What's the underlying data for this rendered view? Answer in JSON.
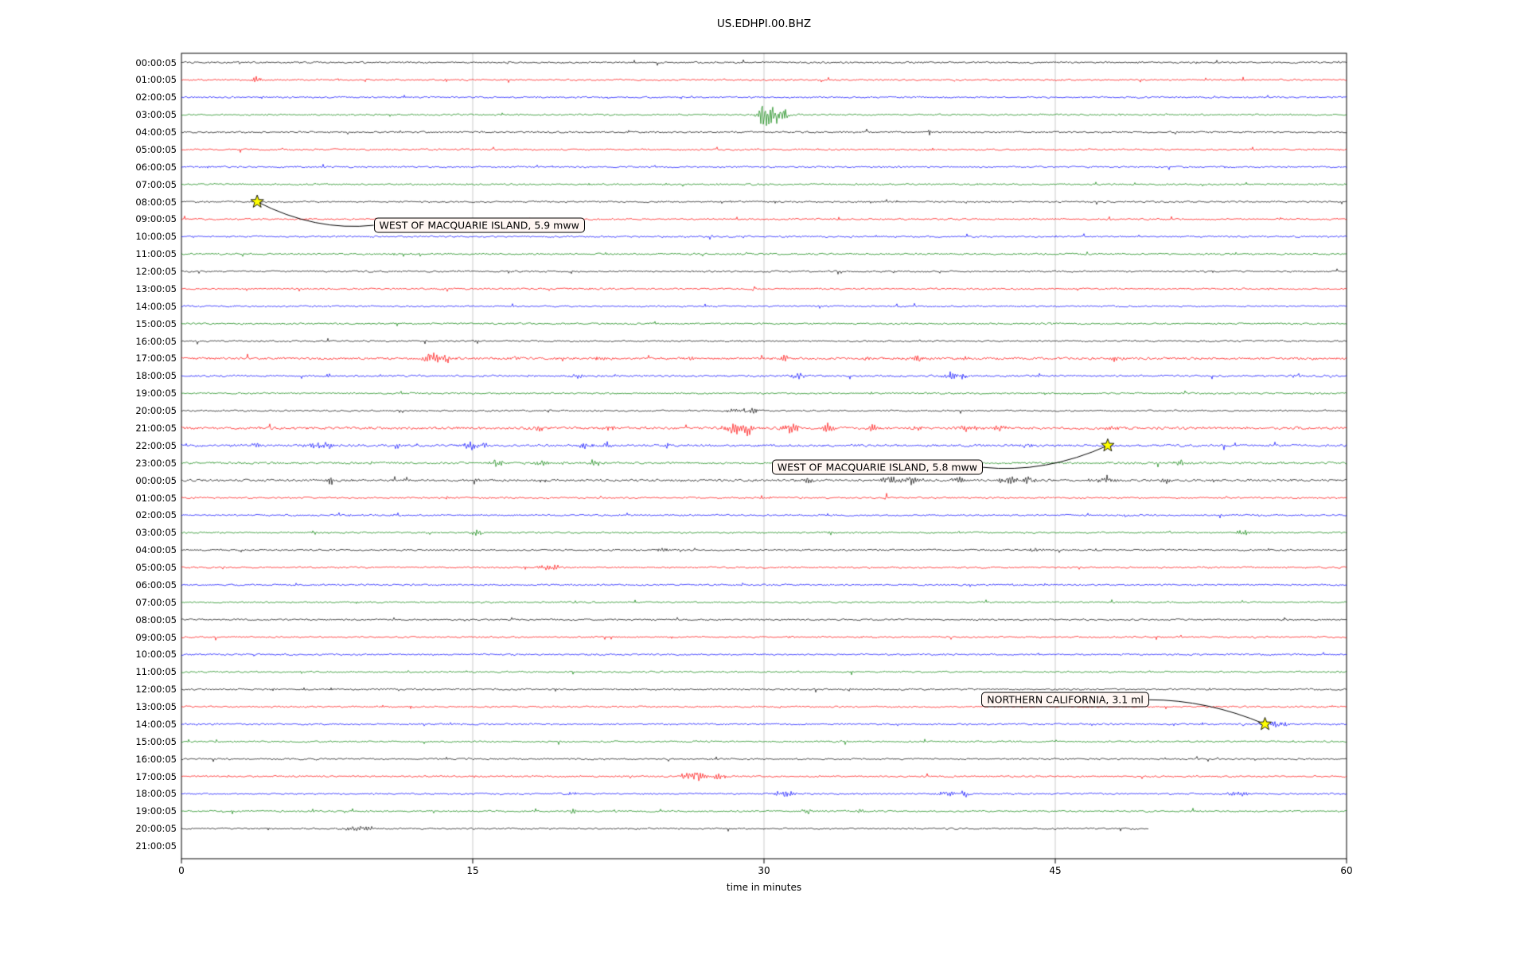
{
  "chart_data": {
    "type": "line",
    "subtype": "helicorder-seismogram",
    "title": "US.EDHPI.00.BHZ",
    "xlabel": "time in minutes",
    "x_ticks": [
      0,
      15,
      30,
      45,
      60
    ],
    "x_range": [
      0,
      60
    ],
    "minutes_per_line": 60,
    "grid": "vertical-only",
    "palette": {
      "k": "#000000",
      "r": "#ff0000",
      "b": "#0000ff",
      "g": "#008000"
    },
    "grid_color": "#bbbbbb",
    "frame_color": "#000000",
    "marker_color": "#ffff00",
    "rows": [
      {
        "t": "00:00:05",
        "c": "k"
      },
      {
        "t": "01:00:05",
        "c": "r",
        "b": [
          [
            3.9,
            0.25,
            6
          ]
        ]
      },
      {
        "t": "02:00:05",
        "c": "b"
      },
      {
        "t": "03:00:05",
        "c": "g",
        "b": [
          [
            29.9,
            0.25,
            10
          ],
          [
            30.4,
            0.5,
            13
          ],
          [
            31.1,
            0.2,
            7
          ]
        ]
      },
      {
        "t": "04:00:05",
        "c": "k",
        "b": [
          [
            38.5,
            0.07,
            6
          ]
        ]
      },
      {
        "t": "05:00:05",
        "c": "r"
      },
      {
        "t": "06:00:05",
        "c": "b"
      },
      {
        "t": "07:00:05",
        "c": "g"
      },
      {
        "t": "08:00:05",
        "c": "k",
        "b": [
          [
            4.0,
            0.15,
            2.5
          ]
        ]
      },
      {
        "t": "09:00:05",
        "c": "r"
      },
      {
        "t": "10:00:05",
        "c": "b",
        "b": [
          [
            27.2,
            0.1,
            3.5
          ]
        ]
      },
      {
        "t": "11:00:05",
        "c": "g"
      },
      {
        "t": "12:00:05",
        "c": "k"
      },
      {
        "t": "13:00:05",
        "c": "r"
      },
      {
        "t": "14:00:05",
        "c": "b"
      },
      {
        "t": "15:00:05",
        "c": "g"
      },
      {
        "t": "16:00:05",
        "c": "k",
        "b": [
          [
            15.2,
            0.08,
            5
          ]
        ]
      },
      {
        "t": "17:00:05",
        "c": "r",
        "n": 1.6,
        "b": [
          [
            12.9,
            0.4,
            8
          ],
          [
            13.6,
            0.25,
            6
          ],
          [
            17.2,
            0.3,
            3
          ],
          [
            21.7,
            0.35,
            3.5
          ],
          [
            26.2,
            0.25,
            2.5
          ],
          [
            31.0,
            0.35,
            4
          ],
          [
            35.3,
            0.25,
            3
          ],
          [
            37.9,
            0.35,
            4.5
          ],
          [
            40.3,
            0.25,
            3
          ],
          [
            48.1,
            0.3,
            3.5
          ]
        ]
      },
      {
        "t": "18:00:05",
        "c": "b",
        "n": 1.3,
        "b": [
          [
            20.4,
            0.3,
            3
          ],
          [
            31.8,
            0.35,
            4
          ],
          [
            39.7,
            0.45,
            5
          ],
          [
            40.3,
            0.2,
            4
          ],
          [
            44.2,
            0.2,
            2.5
          ]
        ]
      },
      {
        "t": "19:00:05",
        "c": "g"
      },
      {
        "t": "20:00:05",
        "c": "k",
        "b": [
          [
            28.7,
            0.5,
            4
          ],
          [
            29.5,
            0.2,
            5
          ]
        ]
      },
      {
        "t": "21:00:05",
        "c": "r",
        "n": 1.7,
        "b": [
          [
            18.3,
            0.3,
            5
          ],
          [
            22.1,
            0.3,
            4
          ],
          [
            28.4,
            0.5,
            8
          ],
          [
            29.2,
            0.25,
            10
          ],
          [
            31.4,
            0.45,
            6
          ],
          [
            33.3,
            0.35,
            7
          ],
          [
            35.6,
            0.3,
            4
          ],
          [
            38.1,
            0.35,
            5
          ],
          [
            40.6,
            0.5,
            5
          ],
          [
            42.1,
            0.35,
            5
          ],
          [
            47.9,
            0.3,
            4
          ]
        ]
      },
      {
        "t": "22:00:05",
        "c": "b",
        "n": 1.5,
        "b": [
          [
            3.9,
            0.3,
            4
          ],
          [
            6.9,
            0.45,
            4
          ],
          [
            7.6,
            0.25,
            5
          ],
          [
            11.1,
            0.2,
            4
          ],
          [
            14.9,
            0.45,
            5
          ],
          [
            15.6,
            0.2,
            4
          ],
          [
            20.9,
            0.4,
            5
          ],
          [
            21.9,
            0.3,
            4
          ],
          [
            25.0,
            0.2,
            3
          ],
          [
            43.6,
            0.3,
            4
          ]
        ]
      },
      {
        "t": "23:00:05",
        "c": "g",
        "n": 1.4,
        "b": [
          [
            16.3,
            0.35,
            6
          ],
          [
            17.6,
            0.2,
            3
          ],
          [
            18.6,
            0.3,
            5
          ],
          [
            21.3,
            0.3,
            4
          ],
          [
            51.4,
            0.35,
            6
          ]
        ]
      },
      {
        "t": "00:00:05",
        "c": "k",
        "n": 1.5,
        "b": [
          [
            7.7,
            0.2,
            5
          ],
          [
            11.6,
            0.15,
            6
          ],
          [
            15.2,
            0.2,
            5
          ],
          [
            32.3,
            0.3,
            5
          ],
          [
            36.6,
            0.45,
            6
          ],
          [
            37.6,
            0.3,
            7
          ],
          [
            40.0,
            0.3,
            4
          ],
          [
            42.6,
            0.45,
            6
          ],
          [
            43.6,
            0.3,
            6
          ],
          [
            47.6,
            0.45,
            6
          ],
          [
            50.8,
            0.3,
            5
          ]
        ]
      },
      {
        "t": "01:00:05",
        "c": "r",
        "b": [
          [
            13.6,
            0.08,
            7
          ],
          [
            36.3,
            0.1,
            6
          ]
        ]
      },
      {
        "t": "02:00:05",
        "c": "b"
      },
      {
        "t": "03:00:05",
        "c": "g",
        "b": [
          [
            15.2,
            0.3,
            4
          ],
          [
            33.4,
            0.2,
            3
          ],
          [
            54.7,
            0.4,
            4
          ]
        ]
      },
      {
        "t": "04:00:05",
        "c": "k",
        "b": [
          [
            24.9,
            0.4,
            2.5
          ],
          [
            44.0,
            0.3,
            3
          ]
        ]
      },
      {
        "t": "05:00:05",
        "c": "r",
        "b": [
          [
            18.7,
            0.35,
            4
          ],
          [
            19.3,
            0.15,
            7
          ]
        ]
      },
      {
        "t": "06:00:05",
        "c": "b"
      },
      {
        "t": "07:00:05",
        "c": "g"
      },
      {
        "t": "08:00:05",
        "c": "k"
      },
      {
        "t": "09:00:05",
        "c": "r"
      },
      {
        "t": "10:00:05",
        "c": "b"
      },
      {
        "t": "11:00:05",
        "c": "g"
      },
      {
        "t": "12:00:05",
        "c": "k"
      },
      {
        "t": "13:00:05",
        "c": "r"
      },
      {
        "t": "14:00:05",
        "c": "b",
        "b": [
          [
            56.2,
            0.35,
            5
          ],
          [
            56.8,
            0.2,
            4
          ]
        ]
      },
      {
        "t": "15:00:05",
        "c": "g"
      },
      {
        "t": "16:00:05",
        "c": "k"
      },
      {
        "t": "17:00:05",
        "c": "r",
        "b": [
          [
            25.9,
            0.3,
            5
          ],
          [
            26.6,
            0.4,
            6
          ],
          [
            27.6,
            0.3,
            4
          ]
        ]
      },
      {
        "t": "18:00:05",
        "c": "b",
        "b": [
          [
            20.1,
            0.2,
            4
          ],
          [
            30.9,
            0.4,
            4
          ],
          [
            31.4,
            0.2,
            3
          ],
          [
            39.4,
            0.4,
            4
          ],
          [
            40.3,
            0.3,
            4
          ],
          [
            54.1,
            0.3,
            3
          ],
          [
            54.7,
            0.2,
            4
          ]
        ]
      },
      {
        "t": "19:00:05",
        "c": "g",
        "b": [
          [
            20.2,
            0.2,
            4
          ],
          [
            32.2,
            0.25,
            4
          ],
          [
            35.0,
            0.3,
            3
          ]
        ]
      },
      {
        "t": "20:00:05",
        "c": "k",
        "end": 49.8,
        "b": [
          [
            8.8,
            0.4,
            3
          ],
          [
            9.4,
            0.3,
            3
          ]
        ]
      },
      {
        "t": "21:00:05",
        "c": "r",
        "end": 0
      }
    ],
    "events": [
      {
        "label": "WEST OF MACQUARIE ISLAND, 5.9 mww",
        "row": 8,
        "minute": 3.9,
        "label_minute": 9.9,
        "label_row": 9.35,
        "side": "left"
      },
      {
        "label": "WEST OF MACQUARIE ISLAND, 5.8 mww",
        "row": 22,
        "minute": 47.7,
        "label_minute": 30.4,
        "label_row": 23.25,
        "side": "right"
      },
      {
        "label": "NORTHERN CALIFORNIA, 3.1 ml",
        "row": 38,
        "minute": 55.8,
        "label_minute": 41.2,
        "label_row": 36.6,
        "side": "right"
      }
    ]
  }
}
